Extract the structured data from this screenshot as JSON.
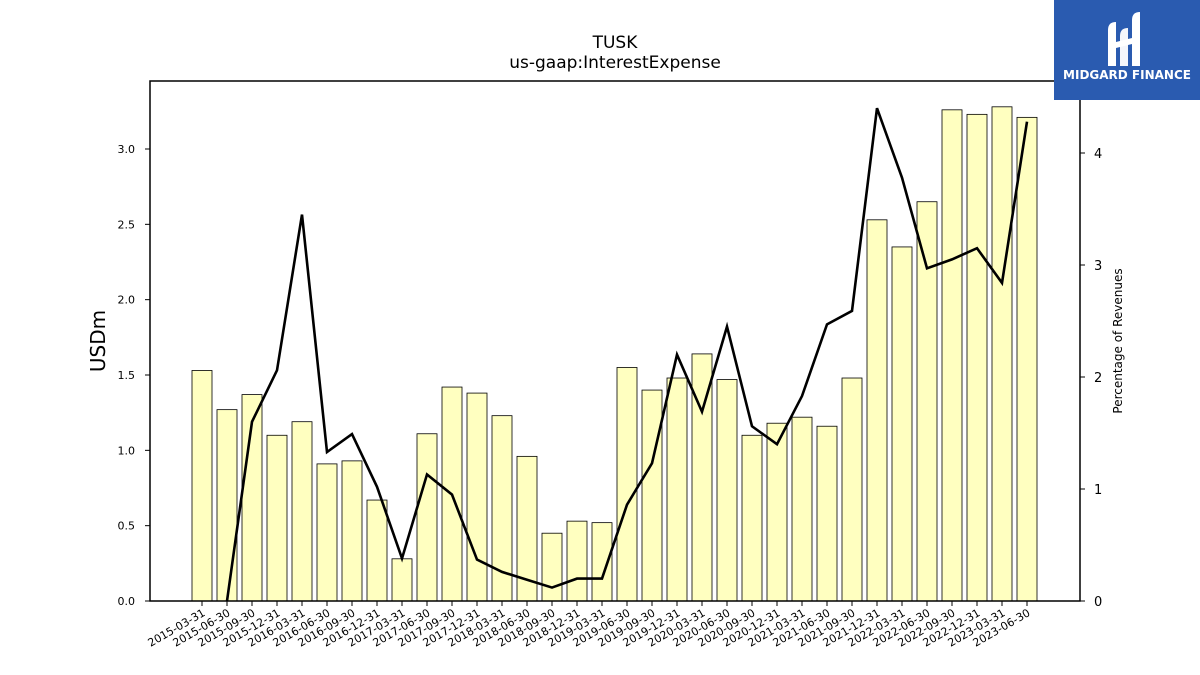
{
  "chart_data": {
    "type": "bar",
    "title": "TUSK",
    "subtitle": "us-gaap:InterestExpense",
    "ylabel": "USDm",
    "y2label": "Percentage of Revenues",
    "ylim": [
      0,
      3.4
    ],
    "y2lim": [
      0,
      4.5
    ],
    "yticks": [
      "0.0",
      "0.5",
      "1.0",
      "1.5",
      "2.0",
      "2.5",
      "3.0"
    ],
    "y2ticks": [
      "0",
      "1",
      "2",
      "3",
      "4"
    ],
    "categories": [
      "2015-03-31",
      "2015-06-30",
      "2015-09-30",
      "2015-12-31",
      "2016-03-31",
      "2016-06-30",
      "2016-09-30",
      "2016-12-31",
      "2017-03-31",
      "2017-06-30",
      "2017-09-30",
      "2017-12-31",
      "2018-03-31",
      "2018-06-30",
      "2018-09-30",
      "2018-12-31",
      "2019-03-31",
      "2019-06-30",
      "2019-09-30",
      "2019-12-31",
      "2020-03-31",
      "2020-06-30",
      "2020-09-30",
      "2020-12-31",
      "2021-03-31",
      "2021-06-30",
      "2021-09-30",
      "2021-12-31",
      "2022-03-31",
      "2022-06-30",
      "2022-09-30",
      "2022-12-31",
      "2023-03-31",
      "2023-06-30"
    ],
    "series": [
      {
        "type": "bar",
        "axis": "left",
        "values": [
          1.53,
          1.27,
          1.37,
          1.1,
          1.19,
          0.91,
          0.93,
          0.67,
          0.28,
          1.11,
          1.42,
          1.38,
          1.23,
          0.96,
          0.45,
          0.53,
          0.52,
          1.55,
          1.4,
          1.48,
          1.64,
          1.47,
          1.1,
          1.18,
          1.22,
          1.16,
          1.48,
          2.53,
          2.35,
          2.65,
          3.26,
          3.23,
          3.28,
          3.21
        ]
      },
      {
        "type": "line",
        "axis": "right",
        "values": [
          null,
          0.0,
          1.6,
          2.06,
          3.45,
          1.33,
          1.49,
          1.02,
          0.38,
          1.13,
          0.95,
          0.37,
          0.26,
          0.19,
          0.12,
          0.2,
          0.2,
          0.86,
          1.23,
          2.2,
          1.69,
          2.45,
          1.56,
          1.4,
          1.83,
          2.47,
          2.59,
          4.4,
          3.78,
          2.97,
          3.05,
          3.15,
          2.84,
          4.28
        ]
      }
    ],
    "grid": false,
    "colors": {
      "bar_fill": "#ffffc0",
      "bar_stroke": "#000000",
      "line": "#000000"
    }
  },
  "logo": {
    "text": "MIDGARD FINANCE",
    "bg": "#2a5bb0"
  }
}
